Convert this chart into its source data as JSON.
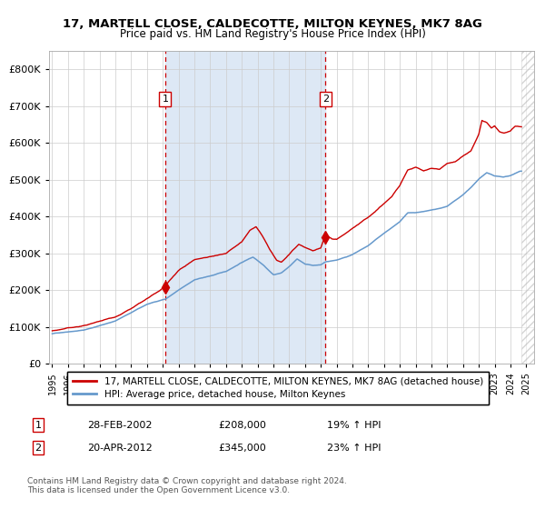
{
  "title_line1": "17, MARTELL CLOSE, CALDECOTTE, MILTON KEYNES, MK7 8AG",
  "title_line2": "Price paid vs. HM Land Registry's House Price Index (HPI)",
  "legend_line1": "17, MARTELL CLOSE, CALDECOTTE, MILTON KEYNES, MK7 8AG (detached house)",
  "legend_line2": "HPI: Average price, detached house, Milton Keynes",
  "annotation1_date": "28-FEB-2002",
  "annotation1_price": "£208,000",
  "annotation1_hpi": "19% ↑ HPI",
  "annotation2_date": "20-APR-2012",
  "annotation2_price": "£345,000",
  "annotation2_hpi": "23% ↑ HPI",
  "sale1_year": 2002.15,
  "sale1_value": 208000,
  "sale2_year": 2012.3,
  "sale2_value": 345000,
  "xmin": 1994.8,
  "xmax": 2025.5,
  "ymin": 0,
  "ymax": 850000,
  "red_color": "#cc0000",
  "blue_color": "#6699cc",
  "shade_color": "#dde8f5",
  "bg_color": "#ffffff",
  "grid_color": "#cccccc",
  "hatch_start": 2024.7,
  "footnote": "Contains HM Land Registry data © Crown copyright and database right 2024.\nThis data is licensed under the Open Government Licence v3.0."
}
